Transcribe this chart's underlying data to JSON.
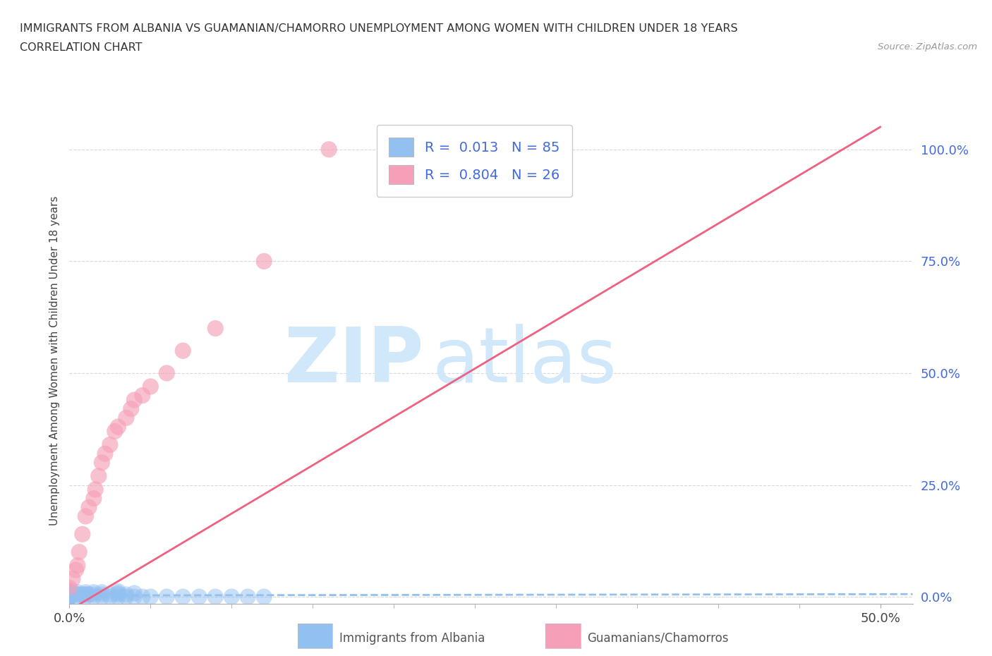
{
  "title": "IMMIGRANTS FROM ALBANIA VS GUAMANIAN/CHAMORRO UNEMPLOYMENT AMONG WOMEN WITH CHILDREN UNDER 18 YEARS",
  "subtitle": "CORRELATION CHART",
  "source": "Source: ZipAtlas.com",
  "legend_label_1": "Immigrants from Albania",
  "legend_label_2": "Guamanians/Chamorros",
  "ylabel_left": "Unemployment Among Women with Children Under 18 years",
  "r1": 0.013,
  "n1": 85,
  "r2": 0.804,
  "n2": 26,
  "color_albania": "#92c0f0",
  "color_guam": "#f5a0b8",
  "color_albania_line": "#92c0f0",
  "color_guam_line": "#f06080",
  "color_tick_right": "#4169e1",
  "watermark_zip": "ZIP",
  "watermark_atlas": "atlas",
  "watermark_color": "#d0e8fa",
  "background_color": "#ffffff",
  "grid_color": "#d8d8d8",
  "xmin": 0.0,
  "xmax": 0.52,
  "ymin": -0.015,
  "ymax": 1.07,
  "albania_x": [
    0.0,
    0.0,
    0.0,
    0.0,
    0.0,
    0.0,
    0.0,
    0.0,
    0.0,
    0.0,
    0.0,
    0.0,
    0.0,
    0.0,
    0.0,
    0.0,
    0.0,
    0.0,
    0.0,
    0.0,
    0.0,
    0.0,
    0.0,
    0.0,
    0.0,
    0.0,
    0.0,
    0.0,
    0.0,
    0.0,
    0.0,
    0.0,
    0.0,
    0.0,
    0.0,
    0.0,
    0.0,
    0.0,
    0.0,
    0.0,
    0.005,
    0.005,
    0.005,
    0.005,
    0.008,
    0.01,
    0.01,
    0.01,
    0.01,
    0.012,
    0.015,
    0.015,
    0.015,
    0.02,
    0.02,
    0.02,
    0.025,
    0.025,
    0.03,
    0.03,
    0.03,
    0.03,
    0.035,
    0.035,
    0.04,
    0.04,
    0.045,
    0.05,
    0.06,
    0.07,
    0.08,
    0.09,
    0.1,
    0.11,
    0.12,
    0.0,
    0.0,
    0.0,
    0.0,
    0.0,
    0.0,
    0.0,
    0.0,
    0.0,
    0.0
  ],
  "albania_y": [
    0.0,
    0.0,
    0.0,
    0.0,
    0.0,
    0.0,
    0.0,
    0.0,
    0.0,
    0.0,
    0.0,
    0.0,
    0.0,
    0.0,
    0.0,
    0.0,
    0.0,
    0.0,
    0.0,
    0.0,
    0.0,
    0.0,
    0.0,
    0.0,
    0.0,
    0.0,
    0.0,
    0.0,
    0.0,
    0.0,
    0.005,
    0.005,
    0.005,
    0.005,
    0.008,
    0.01,
    0.01,
    0.01,
    0.012,
    0.015,
    0.0,
    0.005,
    0.005,
    0.01,
    0.005,
    0.0,
    0.005,
    0.005,
    0.01,
    0.005,
    0.0,
    0.005,
    0.01,
    0.0,
    0.005,
    0.01,
    0.0,
    0.005,
    0.0,
    0.005,
    0.008,
    0.012,
    0.0,
    0.005,
    0.0,
    0.008,
    0.0,
    0.0,
    0.0,
    0.0,
    0.0,
    0.0,
    0.0,
    0.0,
    0.0,
    0.0,
    0.0,
    0.0,
    0.0,
    0.0,
    0.0,
    0.0,
    0.0,
    0.0,
    0.0
  ],
  "guam_x": [
    0.0,
    0.002,
    0.004,
    0.005,
    0.006,
    0.008,
    0.01,
    0.012,
    0.015,
    0.016,
    0.018,
    0.02,
    0.022,
    0.025,
    0.028,
    0.03,
    0.035,
    0.038,
    0.04,
    0.045,
    0.05,
    0.06,
    0.07,
    0.09,
    0.12,
    0.16
  ],
  "guam_y": [
    0.02,
    0.04,
    0.06,
    0.07,
    0.1,
    0.14,
    0.18,
    0.2,
    0.22,
    0.24,
    0.27,
    0.3,
    0.32,
    0.34,
    0.37,
    0.38,
    0.4,
    0.42,
    0.44,
    0.45,
    0.47,
    0.5,
    0.55,
    0.6,
    0.75,
    1.0
  ],
  "guam_line_x": [
    0.0,
    0.5
  ],
  "guam_line_y": [
    -0.03,
    1.05
  ],
  "albania_line_y": [
    0.003,
    0.006
  ]
}
